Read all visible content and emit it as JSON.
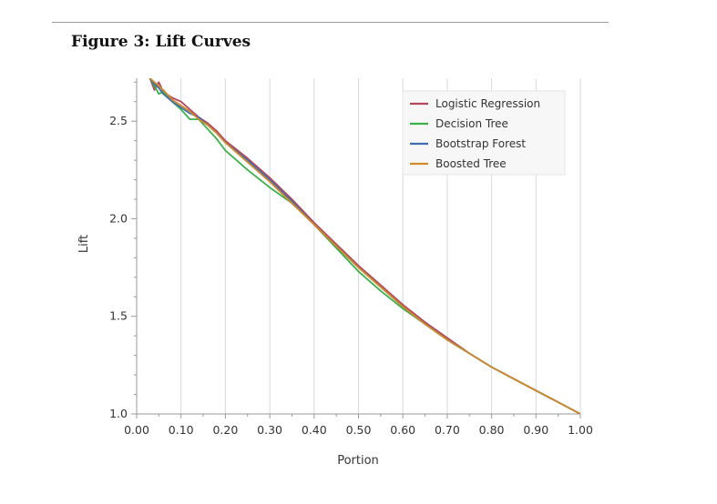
{
  "figure": {
    "title": "Figure 3: Lift Curves"
  },
  "chart_data": {
    "type": "line",
    "title": "",
    "xlabel": "Portion",
    "ylabel": "Lift",
    "xlim": [
      0.0,
      1.0
    ],
    "ylim": [
      1.0,
      2.72
    ],
    "x_ticks": [
      0.0,
      0.1,
      0.2,
      0.3,
      0.4,
      0.5,
      0.6,
      0.7,
      0.8,
      0.9,
      1.0
    ],
    "x_tick_labels": [
      "0.00",
      "0.10",
      "0.20",
      "0.30",
      "0.40",
      "0.50",
      "0.60",
      "0.70",
      "0.80",
      "0.90",
      "1.00"
    ],
    "y_ticks": [
      1.0,
      1.5,
      2.0,
      2.5
    ],
    "y_tick_labels": [
      "1.0",
      "1.5",
      "2.0",
      "2.5"
    ],
    "grid": "vertical",
    "legend_position": "top-right",
    "series": [
      {
        "name": "Logistic Regression",
        "color": "#b5475d",
        "points": [
          [
            0.03,
            2.72
          ],
          [
            0.04,
            2.66
          ],
          [
            0.05,
            2.7
          ],
          [
            0.06,
            2.65
          ],
          [
            0.08,
            2.62
          ],
          [
            0.1,
            2.6
          ],
          [
            0.12,
            2.56
          ],
          [
            0.14,
            2.52
          ],
          [
            0.16,
            2.49
          ],
          [
            0.18,
            2.45
          ],
          [
            0.2,
            2.4
          ],
          [
            0.25,
            2.31
          ],
          [
            0.3,
            2.21
          ],
          [
            0.35,
            2.1
          ],
          [
            0.4,
            1.98
          ],
          [
            0.45,
            1.87
          ],
          [
            0.5,
            1.76
          ],
          [
            0.55,
            1.66
          ],
          [
            0.6,
            1.56
          ],
          [
            0.65,
            1.47
          ],
          [
            0.7,
            1.39
          ],
          [
            0.75,
            1.31
          ],
          [
            0.8,
            1.24
          ],
          [
            0.85,
            1.18
          ],
          [
            0.9,
            1.12
          ],
          [
            0.95,
            1.06
          ],
          [
            1.0,
            1.0
          ]
        ]
      },
      {
        "name": "Decision Tree",
        "color": "#3bb04a",
        "points": [
          [
            0.03,
            2.72
          ],
          [
            0.04,
            2.68
          ],
          [
            0.05,
            2.64
          ],
          [
            0.06,
            2.65
          ],
          [
            0.08,
            2.6
          ],
          [
            0.1,
            2.56
          ],
          [
            0.12,
            2.51
          ],
          [
            0.14,
            2.51
          ],
          [
            0.16,
            2.46
          ],
          [
            0.18,
            2.41
          ],
          [
            0.2,
            2.35
          ],
          [
            0.25,
            2.25
          ],
          [
            0.3,
            2.16
          ],
          [
            0.35,
            2.08
          ],
          [
            0.4,
            1.97
          ],
          [
            0.45,
            1.85
          ],
          [
            0.5,
            1.73
          ],
          [
            0.55,
            1.63
          ],
          [
            0.6,
            1.54
          ],
          [
            0.65,
            1.46
          ],
          [
            0.7,
            1.38
          ],
          [
            0.75,
            1.31
          ],
          [
            0.8,
            1.24
          ],
          [
            0.85,
            1.18
          ],
          [
            0.9,
            1.12
          ],
          [
            0.95,
            1.06
          ],
          [
            1.0,
            1.0
          ]
        ]
      },
      {
        "name": "Bootstrap Forest",
        "color": "#3f6fb0",
        "points": [
          [
            0.03,
            2.72
          ],
          [
            0.04,
            2.69
          ],
          [
            0.05,
            2.67
          ],
          [
            0.06,
            2.64
          ],
          [
            0.08,
            2.6
          ],
          [
            0.1,
            2.57
          ],
          [
            0.12,
            2.54
          ],
          [
            0.14,
            2.52
          ],
          [
            0.16,
            2.48
          ],
          [
            0.18,
            2.44
          ],
          [
            0.2,
            2.39
          ],
          [
            0.25,
            2.3
          ],
          [
            0.3,
            2.2
          ],
          [
            0.35,
            2.09
          ],
          [
            0.4,
            1.97
          ],
          [
            0.45,
            1.86
          ],
          [
            0.5,
            1.75
          ],
          [
            0.55,
            1.65
          ],
          [
            0.6,
            1.55
          ],
          [
            0.65,
            1.46
          ],
          [
            0.7,
            1.38
          ],
          [
            0.75,
            1.31
          ],
          [
            0.8,
            1.24
          ],
          [
            0.85,
            1.18
          ],
          [
            0.9,
            1.12
          ],
          [
            0.95,
            1.06
          ],
          [
            1.0,
            1.0
          ]
        ]
      },
      {
        "name": "Boosted Tree",
        "color": "#d08a2c",
        "points": [
          [
            0.03,
            2.72
          ],
          [
            0.04,
            2.7
          ],
          [
            0.05,
            2.68
          ],
          [
            0.06,
            2.66
          ],
          [
            0.08,
            2.61
          ],
          [
            0.1,
            2.58
          ],
          [
            0.12,
            2.55
          ],
          [
            0.14,
            2.51
          ],
          [
            0.16,
            2.48
          ],
          [
            0.18,
            2.44
          ],
          [
            0.2,
            2.39
          ],
          [
            0.25,
            2.29
          ],
          [
            0.3,
            2.19
          ],
          [
            0.35,
            2.08
          ],
          [
            0.4,
            1.97
          ],
          [
            0.45,
            1.86
          ],
          [
            0.5,
            1.75
          ],
          [
            0.55,
            1.65
          ],
          [
            0.6,
            1.55
          ],
          [
            0.65,
            1.46
          ],
          [
            0.7,
            1.38
          ],
          [
            0.75,
            1.31
          ],
          [
            0.8,
            1.24
          ],
          [
            0.85,
            1.18
          ],
          [
            0.9,
            1.12
          ],
          [
            0.95,
            1.06
          ],
          [
            1.0,
            1.0
          ]
        ]
      }
    ]
  }
}
